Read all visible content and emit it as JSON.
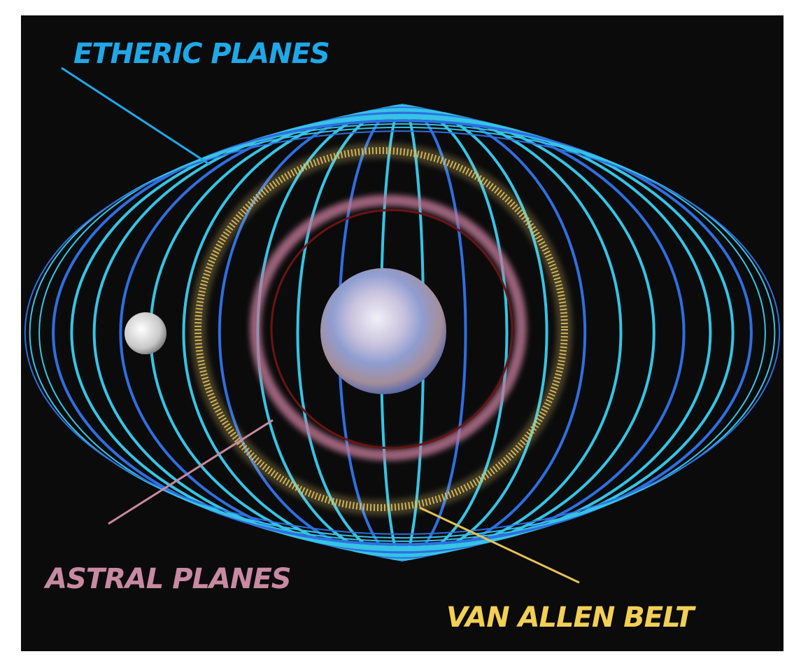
{
  "labels": {
    "etheric": "ETHERIC PLANES",
    "astral": "ASTRAL PLANES",
    "van_allen": "VAN ALLEN BELT"
  }
}
